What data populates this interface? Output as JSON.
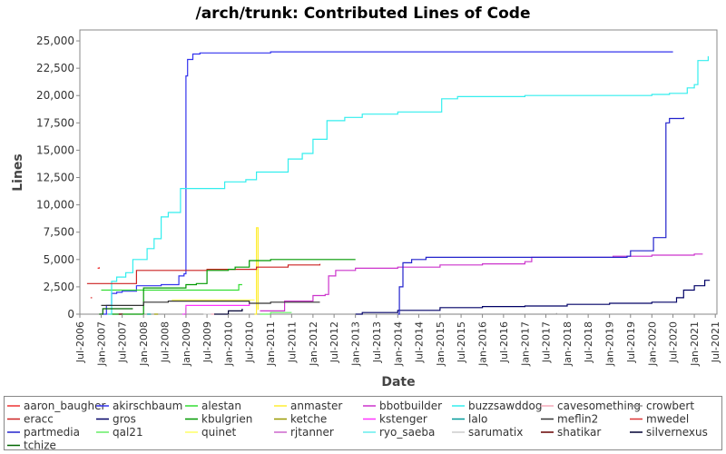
{
  "chart_data": {
    "type": "line",
    "title": "/arch/trunk: Contributed Lines of Code",
    "xlabel": "Date",
    "ylabel": "Lines",
    "ylim": [
      0,
      26000
    ],
    "xlim": [
      "2006-07-01",
      "2021-07-15"
    ],
    "y_ticks": [
      "0",
      "2,500",
      "5,000",
      "7,500",
      "10,000",
      "12,500",
      "15,000",
      "17,500",
      "20,000",
      "22,500",
      "25,000"
    ],
    "x_ticks": [
      "Jul-2006",
      "Jan-2007",
      "Jul-2007",
      "Jan-2008",
      "Jul-2008",
      "Jan-2009",
      "Jul-2009",
      "Jan-2010",
      "Jul-2010",
      "Jan-2011",
      "Jul-2011",
      "Jan-2012",
      "Jul-2012",
      "Jan-2013",
      "Jul-2013",
      "Jan-2014",
      "Jul-2014",
      "Jan-2015",
      "Jul-2015",
      "Jan-2016",
      "Jul-2016",
      "Jan-2017",
      "Jul-2017",
      "Jan-2018",
      "Jul-2018",
      "Jan-2019",
      "Jul-2019",
      "Jan-2020",
      "Jul-2020",
      "Jan-2021",
      "Jul-2021"
    ],
    "grid": false,
    "legend_position": "bottom",
    "series": [
      {
        "name": "aaron_baugher",
        "color": "#ee3333",
        "points": [
          [
            "2006-12-01",
            4200
          ],
          [
            "2006-12-15",
            4300
          ]
        ]
      },
      {
        "name": "akirschbaum",
        "color": "#3333ee",
        "points": [
          [
            "2007-01-15",
            0
          ],
          [
            "2007-02-15",
            800
          ],
          [
            "2007-04-01",
            1900
          ],
          [
            "2007-05-15",
            2000
          ],
          [
            "2007-07-01",
            2100
          ],
          [
            "2007-11-01",
            2600
          ],
          [
            "2008-06-01",
            2700
          ],
          [
            "2008-11-01",
            3500
          ],
          [
            "2008-12-15",
            3700
          ],
          [
            "2009-01-01",
            21800
          ],
          [
            "2009-01-15",
            23300
          ],
          [
            "2009-03-01",
            23800
          ],
          [
            "2009-05-01",
            23900
          ],
          [
            "2011-01-01",
            24000
          ],
          [
            "2020-07-01",
            24000
          ]
        ]
      },
      {
        "name": "alestan",
        "color": "#33dd33",
        "points": [
          [
            "2007-01-01",
            2200
          ],
          [
            "2010-04-01",
            2700
          ],
          [
            "2010-05-01",
            2700
          ]
        ]
      },
      {
        "name": "anmaster",
        "color": "#ffee33",
        "points": [
          [
            "2010-08-15",
            0
          ],
          [
            "2010-09-01",
            7900
          ],
          [
            "2010-09-15",
            400
          ]
        ]
      },
      {
        "name": "bbotbuilder",
        "color": "#cc33cc",
        "points": [
          [
            "2010-10-01",
            300
          ],
          [
            "2011-05-01",
            1200
          ],
          [
            "2012-01-01",
            1700
          ],
          [
            "2012-04-15",
            1800
          ],
          [
            "2012-05-15",
            3500
          ],
          [
            "2012-07-15",
            4000
          ],
          [
            "2013-01-01",
            4200
          ],
          [
            "2014-01-01",
            4300
          ],
          [
            "2015-01-01",
            4500
          ],
          [
            "2016-01-01",
            4600
          ],
          [
            "2017-01-01",
            4800
          ],
          [
            "2017-03-01",
            5200
          ],
          [
            "2019-02-01",
            5300
          ],
          [
            "2020-01-01",
            5400
          ],
          [
            "2021-01-01",
            5500
          ],
          [
            "2021-03-15",
            5500
          ]
        ]
      },
      {
        "name": "buzzsawddog",
        "color": "#33eeee",
        "points": [
          [
            "2007-03-15",
            0
          ],
          [
            "2007-04-01",
            3000
          ],
          [
            "2007-05-15",
            3400
          ],
          [
            "2007-08-01",
            3800
          ],
          [
            "2007-10-01",
            5000
          ],
          [
            "2008-02-01",
            6000
          ],
          [
            "2008-04-01",
            6900
          ],
          [
            "2008-06-01",
            8900
          ],
          [
            "2008-08-01",
            9300
          ],
          [
            "2008-11-15",
            11500
          ],
          [
            "2009-09-01",
            11500
          ],
          [
            "2009-12-01",
            12100
          ],
          [
            "2010-06-01",
            12300
          ],
          [
            "2010-09-01",
            13000
          ],
          [
            "2011-01-01",
            13000
          ],
          [
            "2011-06-01",
            14200
          ],
          [
            "2011-10-01",
            14700
          ],
          [
            "2012-01-01",
            16000
          ],
          [
            "2012-05-01",
            17700
          ],
          [
            "2012-10-01",
            18000
          ],
          [
            "2013-03-01",
            18300
          ],
          [
            "2014-01-01",
            18500
          ],
          [
            "2015-01-01",
            18500
          ],
          [
            "2015-01-15",
            19700
          ],
          [
            "2015-06-01",
            19900
          ],
          [
            "2017-01-01",
            20000
          ],
          [
            "2020-01-01",
            20100
          ],
          [
            "2020-06-01",
            20200
          ],
          [
            "2020-11-01",
            20700
          ],
          [
            "2021-01-01",
            21000
          ],
          [
            "2021-02-01",
            23200
          ],
          [
            "2021-05-01",
            23600
          ]
        ]
      },
      {
        "name": "cavesomething",
        "color": "#f4a8b8",
        "points": [
          [
            "2009-08-01",
            0
          ],
          [
            "2009-09-01",
            50
          ]
        ]
      },
      {
        "name": "crowbert",
        "color": "#999999",
        "points": [
          [
            "2014-10-01",
            0
          ],
          [
            "2017-10-01",
            100
          ]
        ]
      },
      {
        "name": "eracc",
        "color": "#cc2222",
        "points": [
          [
            "2006-09-01",
            2800
          ],
          [
            "2007-11-01",
            4000
          ],
          [
            "2009-07-01",
            4100
          ],
          [
            "2010-09-01",
            4300
          ],
          [
            "2011-06-01",
            4500
          ],
          [
            "2012-03-01",
            4600
          ]
        ]
      },
      {
        "name": "gros",
        "color": "#000066",
        "points": [
          [
            "2013-01-01",
            0
          ],
          [
            "2013-03-01",
            150
          ],
          [
            "2014-01-01",
            350
          ],
          [
            "2015-01-01",
            600
          ],
          [
            "2016-01-01",
            700
          ],
          [
            "2017-01-01",
            750
          ],
          [
            "2018-01-01",
            900
          ],
          [
            "2019-01-01",
            1000
          ],
          [
            "2020-01-01",
            1100
          ],
          [
            "2020-08-01",
            1500
          ],
          [
            "2020-10-01",
            2200
          ],
          [
            "2021-01-01",
            2600
          ],
          [
            "2021-04-01",
            3100
          ],
          [
            "2021-05-15",
            3100
          ]
        ]
      },
      {
        "name": "kbulgrien",
        "color": "#009900",
        "points": [
          [
            "2007-03-01",
            0
          ],
          [
            "2008-01-01",
            2400
          ],
          [
            "2008-08-01",
            2400
          ],
          [
            "2009-01-01",
            2700
          ],
          [
            "2009-04-01",
            2800
          ],
          [
            "2009-07-01",
            4000
          ],
          [
            "2010-01-01",
            4100
          ],
          [
            "2010-03-01",
            4300
          ],
          [
            "2010-07-01",
            4900
          ],
          [
            "2011-01-01",
            5000
          ],
          [
            "2012-01-01",
            5000
          ],
          [
            "2013-01-01",
            5000
          ]
        ]
      },
      {
        "name": "ketche",
        "color": "#999900",
        "points": [
          [
            "2008-04-01",
            0
          ],
          [
            "2008-05-01",
            50
          ]
        ]
      },
      {
        "name": "kstenger",
        "color": "#ff33ff",
        "points": [
          [
            "2008-12-01",
            0
          ],
          [
            "2009-01-01",
            800
          ],
          [
            "2010-07-01",
            1000
          ]
        ]
      },
      {
        "name": "lalo",
        "color": "#009999",
        "points": [
          [
            "2008-02-01",
            0
          ],
          [
            "2008-03-01",
            30
          ]
        ]
      },
      {
        "name": "meflin2",
        "color": "#333333",
        "points": [
          [
            "2007-01-01",
            800
          ],
          [
            "2008-01-01",
            1100
          ],
          [
            "2008-08-01",
            1200
          ],
          [
            "2010-01-01",
            1200
          ],
          [
            "2010-07-01",
            1000
          ],
          [
            "2011-01-01",
            1100
          ],
          [
            "2012-03-01",
            1100
          ]
        ]
      },
      {
        "name": "mwedel",
        "color": "#dd3333",
        "points": [
          [
            "2006-10-01",
            1500
          ],
          [
            "2006-10-15",
            1500
          ]
        ]
      },
      {
        "name": "partmedia",
        "color": "#2222cc",
        "points": [
          [
            "2014-01-01",
            0
          ],
          [
            "2014-01-15",
            2500
          ],
          [
            "2014-02-15",
            4700
          ],
          [
            "2014-05-01",
            5000
          ],
          [
            "2014-09-01",
            5200
          ],
          [
            "2016-01-01",
            5200
          ],
          [
            "2019-06-01",
            5300
          ],
          [
            "2019-07-01",
            5800
          ],
          [
            "2020-01-15",
            7000
          ],
          [
            "2020-05-01",
            17500
          ],
          [
            "2020-06-01",
            17900
          ],
          [
            "2020-10-01",
            18000
          ]
        ]
      },
      {
        "name": "qal21",
        "color": "#66ee66",
        "points": [
          [
            "2010-10-01",
            0
          ],
          [
            "2011-01-01",
            150
          ],
          [
            "2011-07-01",
            150
          ]
        ]
      },
      {
        "name": "quinet",
        "color": "#ffff66",
        "points": [
          [
            "2008-09-01",
            1300
          ],
          [
            "2010-08-15",
            1300
          ]
        ]
      },
      {
        "name": "rjtanner",
        "color": "#cc66cc",
        "points": [
          [
            "2008-12-15",
            0
          ],
          [
            "2009-01-01",
            600
          ]
        ]
      },
      {
        "name": "ryo_saeba",
        "color": "#66eeee",
        "points": [
          [
            "2007-03-01",
            0
          ],
          [
            "2007-04-01",
            50
          ]
        ]
      },
      {
        "name": "sarumatix",
        "color": "#cccccc",
        "points": [
          [
            "2009-06-01",
            0
          ],
          [
            "2009-08-01",
            50
          ]
        ]
      },
      {
        "name": "shatikar",
        "color": "#660000",
        "points": [
          [
            "2007-06-01",
            0
          ],
          [
            "2007-07-01",
            50
          ]
        ]
      },
      {
        "name": "silvernexus",
        "color": "#000033",
        "points": [
          [
            "2009-09-01",
            0
          ],
          [
            "2010-01-01",
            300
          ],
          [
            "2010-05-01",
            500
          ]
        ]
      },
      {
        "name": "tchize",
        "color": "#006600",
        "points": [
          [
            "2006-12-15",
            0
          ],
          [
            "2007-01-15",
            500
          ],
          [
            "2007-10-01",
            500
          ]
        ]
      }
    ]
  }
}
